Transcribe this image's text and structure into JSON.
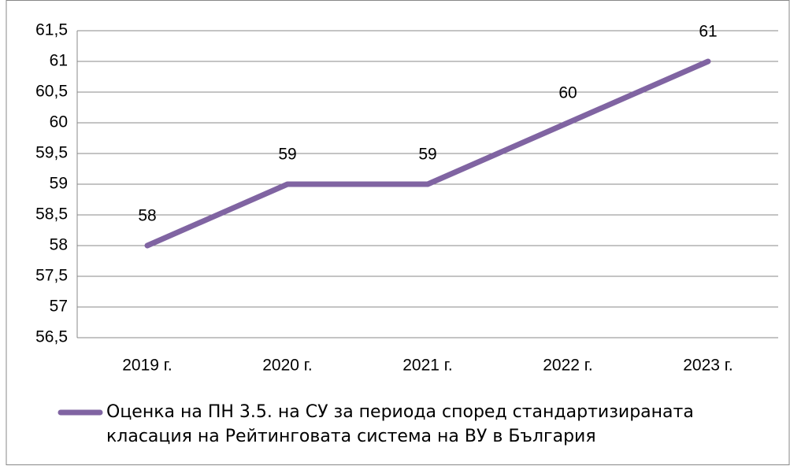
{
  "chart_data": {
    "type": "line",
    "categories": [
      "2019 г.",
      "2020 г.",
      "2021 г.",
      "2022 г.",
      "2023 г."
    ],
    "series": [
      {
        "name": "Оценка на ПН 3.5. на СУ за периода според стандартизираната класация на Рейтинговата система на ВУ в България",
        "color": "#8064a2",
        "values": [
          58,
          59,
          59,
          60,
          61
        ]
      }
    ],
    "ylim": [
      56.5,
      61.5
    ],
    "yticks": [
      {
        "value": 56.5,
        "label": "56,5"
      },
      57,
      {
        "value": 57.5,
        "label": "57,5"
      },
      58,
      {
        "value": 58.5,
        "label": "58,5"
      },
      59,
      {
        "value": 59.5,
        "label": "59,5"
      },
      60,
      {
        "value": 60.5,
        "label": "60,5"
      },
      61,
      {
        "value": 61.5,
        "label": "61,5"
      }
    ],
    "grid": true,
    "legend": "bottom"
  }
}
